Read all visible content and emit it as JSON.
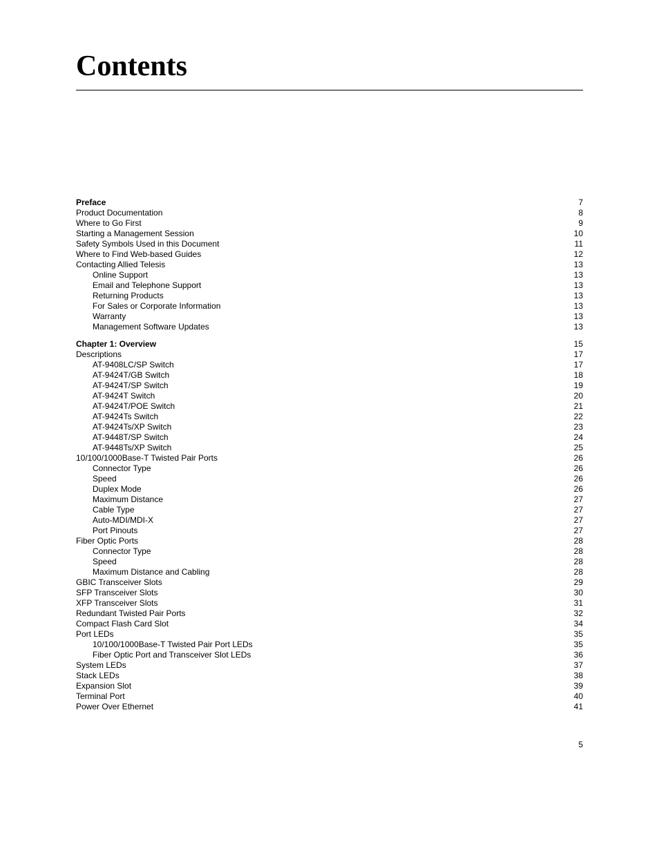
{
  "title": "Contents",
  "page_number": "5",
  "toc": [
    {
      "label": "Preface",
      "page": "7",
      "indent": 0,
      "bold": true
    },
    {
      "label": "Product Documentation",
      "page": "8",
      "indent": 0
    },
    {
      "label": "Where to Go First",
      "page": "9",
      "indent": 0
    },
    {
      "label": "Starting a Management Session",
      "page": "10",
      "indent": 0
    },
    {
      "label": "Safety Symbols Used in this Document",
      "page": "11",
      "indent": 0
    },
    {
      "label": "Where to Find Web-based Guides",
      "page": "12",
      "indent": 0
    },
    {
      "label": "Contacting Allied Telesis",
      "page": "13",
      "indent": 0
    },
    {
      "label": "Online Support",
      "page": "13",
      "indent": 1
    },
    {
      "label": "Email and Telephone Support",
      "page": "13",
      "indent": 1
    },
    {
      "label": "Returning Products",
      "page": "13",
      "indent": 1
    },
    {
      "label": "For Sales or Corporate Information",
      "page": "13",
      "indent": 1
    },
    {
      "label": "Warranty",
      "page": "13",
      "indent": 1
    },
    {
      "label": "Management Software Updates",
      "page": "13",
      "indent": 1
    },
    {
      "gap": true
    },
    {
      "label": "Chapter 1: Overview",
      "page": "15",
      "indent": 0,
      "bold": true
    },
    {
      "label": "Descriptions",
      "page": "17",
      "indent": 0
    },
    {
      "label": "AT-9408LC/SP Switch",
      "page": "17",
      "indent": 1
    },
    {
      "label": "AT-9424T/GB Switch",
      "page": "18",
      "indent": 1
    },
    {
      "label": "AT-9424T/SP Switch",
      "page": "19",
      "indent": 1
    },
    {
      "label": "AT-9424T Switch",
      "page": "20",
      "indent": 1
    },
    {
      "label": "AT-9424T/POE Switch",
      "page": "21",
      "indent": 1
    },
    {
      "label": "AT-9424Ts Switch",
      "page": "22",
      "indent": 1
    },
    {
      "label": "AT-9424Ts/XP Switch",
      "page": "23",
      "indent": 1
    },
    {
      "label": "AT-9448T/SP Switch",
      "page": "24",
      "indent": 1
    },
    {
      "label": "AT-9448Ts/XP Switch",
      "page": "25",
      "indent": 1
    },
    {
      "label": "10/100/1000Base-T Twisted Pair Ports",
      "page": "26",
      "indent": 0
    },
    {
      "label": "Connector Type",
      "page": "26",
      "indent": 1
    },
    {
      "label": "Speed",
      "page": "26",
      "indent": 1
    },
    {
      "label": "Duplex Mode",
      "page": "26",
      "indent": 1
    },
    {
      "label": "Maximum Distance",
      "page": "27",
      "indent": 1
    },
    {
      "label": "Cable Type",
      "page": "27",
      "indent": 1
    },
    {
      "label": "Auto-MDI/MDI-X",
      "page": "27",
      "indent": 1
    },
    {
      "label": "Port Pinouts",
      "page": "27",
      "indent": 1
    },
    {
      "label": "Fiber Optic Ports",
      "page": "28",
      "indent": 0
    },
    {
      "label": "Connector Type",
      "page": "28",
      "indent": 1
    },
    {
      "label": "Speed",
      "page": "28",
      "indent": 1
    },
    {
      "label": "Maximum Distance and Cabling",
      "page": "28",
      "indent": 1
    },
    {
      "label": "GBIC Transceiver Slots",
      "page": "29",
      "indent": 0
    },
    {
      "label": "SFP Transceiver Slots",
      "page": "30",
      "indent": 0
    },
    {
      "label": "XFP Transceiver Slots",
      "page": "31",
      "indent": 0
    },
    {
      "label": "Redundant Twisted Pair Ports",
      "page": "32",
      "indent": 0
    },
    {
      "label": "Compact Flash Card Slot",
      "page": "34",
      "indent": 0
    },
    {
      "label": "Port LEDs",
      "page": "35",
      "indent": 0
    },
    {
      "label": "10/100/1000Base-T Twisted Pair Port LEDs",
      "page": "35",
      "indent": 1
    },
    {
      "label": "Fiber Optic Port and Transceiver Slot LEDs",
      "page": "36",
      "indent": 1
    },
    {
      "label": "System LEDs",
      "page": "37",
      "indent": 0
    },
    {
      "label": "Stack LEDs",
      "page": "38",
      "indent": 0
    },
    {
      "label": "Expansion Slot",
      "page": "39",
      "indent": 0
    },
    {
      "label": "Terminal Port",
      "page": "40",
      "indent": 0
    },
    {
      "label": "Power Over Ethernet",
      "page": "41",
      "indent": 0
    }
  ]
}
